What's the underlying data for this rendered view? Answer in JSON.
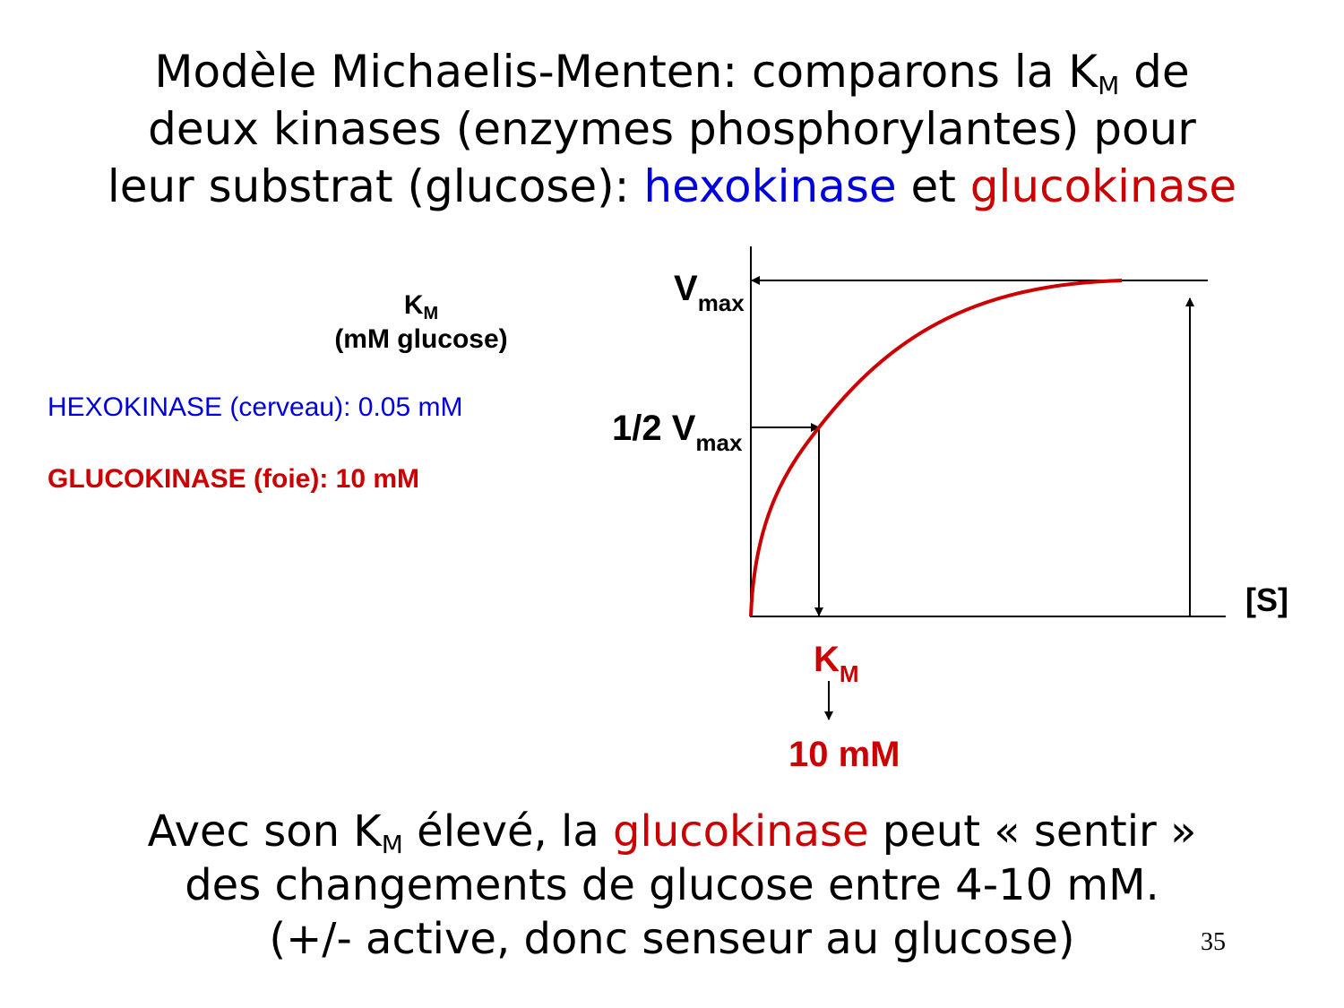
{
  "title": {
    "line1_prefix": "Modèle Michaelis-Menten: comparons la K",
    "line1_sub": "M",
    "line1_suffix": " de",
    "line2": "deux kinases (enzymes phosphorylantes) pour",
    "line3_prefix": "leur substrat (glucose): ",
    "hexokinase": "hexokinase",
    "et": " et ",
    "glucokinase": "glucokinase"
  },
  "table": {
    "header_k": "K",
    "header_sub": "M",
    "header_unit": "(mM glucose)",
    "hexokinase": "HEXOKINASE (cerveau): 0.05 mM",
    "glucokinase": "GLUCOKINASE (foie): 10 mM"
  },
  "diagram": {
    "vmax_v": "V",
    "vmax_sub": "max",
    "half_v": "1/2 V",
    "half_sub": "max",
    "x_label": "[S]",
    "km_k": "K",
    "km_sub": "M",
    "km_value": "10 mM",
    "curve_color": "#cc0000"
  },
  "bottom": {
    "l1_a": "Avec son K",
    "l1_sub": "M",
    "l1_b": " élevé, la ",
    "l1_gluco": "glucokinase",
    "l1_c": " peut « sentir »",
    "line2": "des changements de glucose entre 4-10 mM.",
    "line3": "(+/- active, donc senseur au glucose)"
  },
  "page_number": "35"
}
